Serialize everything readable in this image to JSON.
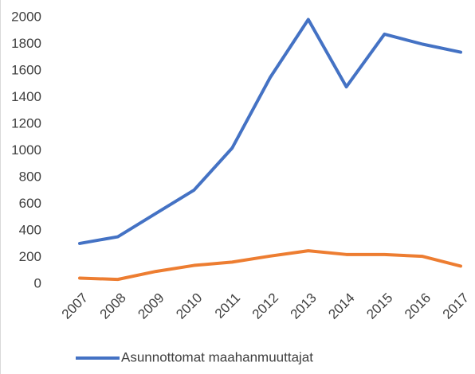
{
  "chart_data": {
    "type": "line",
    "categories": [
      "2007",
      "2008",
      "2009",
      "2010",
      "2011",
      "2012",
      "2013",
      "2014",
      "2015",
      "2016",
      "2017"
    ],
    "series": [
      {
        "name": "Asunnottomat maahanmuuttajat",
        "color": "#4472c4",
        "values": [
          305,
          355,
          530,
          705,
          1020,
          1550,
          1985,
          1480,
          1875,
          1800,
          1740
        ]
      },
      {
        "color": "#ed7d31",
        "values": [
          45,
          35,
          95,
          140,
          165,
          210,
          250,
          222,
          222,
          208,
          135
        ]
      }
    ],
    "ylim": [
      0,
      2000
    ],
    "yticks": [
      0,
      200,
      400,
      600,
      800,
      1000,
      1200,
      1400,
      1600,
      1800,
      2000
    ],
    "grid": false,
    "legend": "bottom"
  }
}
